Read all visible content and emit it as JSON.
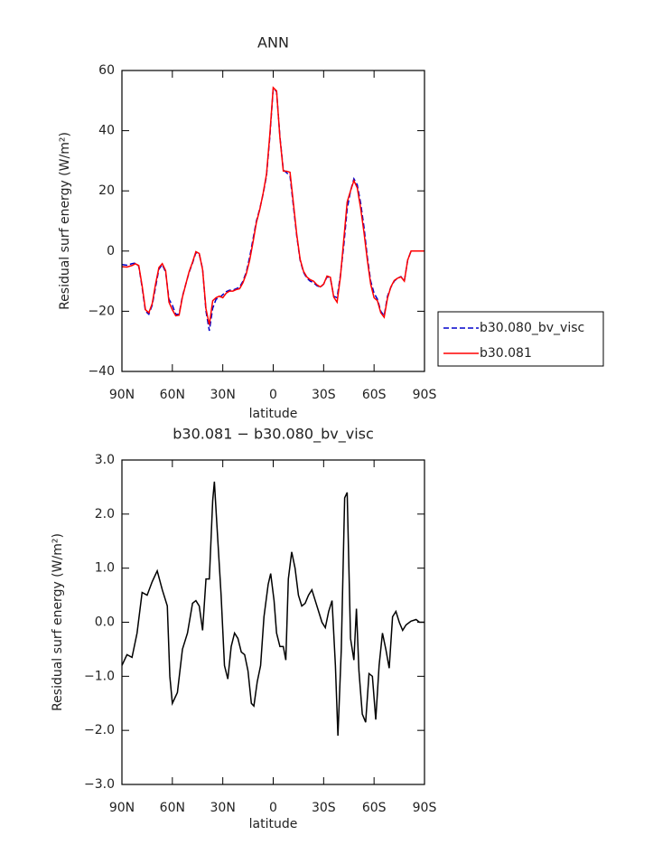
{
  "chart_data": [
    {
      "type": "line",
      "title": "ANN",
      "xlabel": "latitude",
      "ylabel": "Residual surf energy (W/m²)",
      "x": [
        90,
        87,
        84,
        82,
        80,
        78,
        76,
        74,
        72,
        70,
        68,
        66,
        64,
        62,
        60,
        58,
        56,
        54,
        52,
        50,
        48,
        46,
        44,
        42,
        40,
        38,
        36,
        34,
        32,
        30,
        28,
        26,
        24,
        22,
        20,
        18,
        16,
        14,
        12,
        10,
        8,
        6,
        4,
        2,
        0,
        -2,
        -4,
        -6,
        -8,
        -10,
        -12,
        -14,
        -16,
        -18,
        -20,
        -22,
        -24,
        -26,
        -28,
        -30,
        -32,
        -34,
        -36,
        -38,
        -40,
        -42,
        -44,
        -46,
        -48,
        -50,
        -52,
        -54,
        -56,
        -58,
        -60,
        -62,
        -64,
        -66,
        -68,
        -70,
        -72,
        -74,
        -76,
        -78,
        -80,
        -82,
        -86,
        -90
      ],
      "series": [
        {
          "name": "b30.080_bv_visc",
          "color": "#0000cc",
          "line_style": "dashed",
          "values": [
            -4.5,
            -4.7,
            -4.2,
            -4,
            -5,
            -12,
            -20,
            -21,
            -18,
            -12,
            -6,
            -4.5,
            -7,
            -16,
            -18,
            -21,
            -21,
            -15,
            -11,
            -7,
            -4,
            -0.5,
            -1,
            -6,
            -20,
            -26.5,
            -19,
            -16,
            -15.5,
            -14.5,
            -13.5,
            -13,
            -13,
            -12.5,
            -12,
            -10,
            -7,
            -2,
            4,
            10,
            14,
            19,
            25,
            38,
            54,
            53,
            38,
            27,
            26,
            25,
            15,
            5,
            -3,
            -7,
            -9,
            -10,
            -10.5,
            -11.5,
            -12,
            -11,
            -8.5,
            -9,
            -15,
            -15.5,
            -8,
            2,
            14,
            20,
            24,
            22,
            16,
            8,
            -2,
            -10,
            -14,
            -16,
            -20,
            -21.5,
            -15,
            -12,
            -10,
            -9,
            -8.5,
            -10,
            -3,
            0,
            0,
            0
          ]
        },
        {
          "name": "b30.081",
          "color": "#ff0000",
          "line_style": "solid",
          "values": [
            -5.2,
            -5.3,
            -4.8,
            -4.2,
            -4.8,
            -11.5,
            -19.5,
            -20.5,
            -17.5,
            -11,
            -5.5,
            -4.2,
            -6.5,
            -17,
            -19.5,
            -21.5,
            -21.3,
            -15.3,
            -11,
            -6.8,
            -3.7,
            -0.2,
            -0.8,
            -6.2,
            -19.2,
            -24.5,
            -16.5,
            -15.5,
            -15,
            -15.5,
            -14,
            -13.3,
            -13.3,
            -12.8,
            -12.5,
            -10.5,
            -7.5,
            -3,
            3,
            9.5,
            13.8,
            19.2,
            25.5,
            38.8,
            54.3,
            53.2,
            37.6,
            26.6,
            26.5,
            26.2,
            16,
            5.5,
            -2.7,
            -6.7,
            -8.6,
            -9.5,
            -10,
            -11.2,
            -11.9,
            -11,
            -8.3,
            -8.7,
            -15.3,
            -17,
            -8.5,
            4,
            16.3,
            20,
            23.4,
            21,
            14.3,
            6.2,
            -3,
            -11,
            -15.5,
            -16.5,
            -20.5,
            -22,
            -15.6,
            -11.9,
            -9.8,
            -9,
            -8.6,
            -10,
            -3,
            0,
            0,
            0
          ]
        }
      ],
      "xlim": [
        90,
        -90
      ],
      "xticks": [
        {
          "value": 90,
          "label": "90N"
        },
        {
          "value": 60,
          "label": "60N"
        },
        {
          "value": 30,
          "label": "30N"
        },
        0,
        {
          "value": -30,
          "label": "30S"
        },
        {
          "value": -60,
          "label": "60S"
        },
        {
          "value": -90,
          "label": "90S"
        }
      ],
      "ylim": [
        -40,
        60
      ],
      "yticks": [
        60,
        40,
        20,
        0,
        {
          "value": -20,
          "label": "−20"
        },
        {
          "value": -40,
          "label": "−40"
        }
      ],
      "legend": "right"
    },
    {
      "type": "line",
      "title": "b30.081 − b30.080_bv_visc",
      "xlabel": "latitude",
      "ylabel": "Residual surf energy (W/m²)",
      "x": [
        90,
        87,
        84,
        81,
        78,
        75,
        72,
        69,
        66,
        63,
        61.5,
        60,
        57,
        54,
        51,
        48,
        46,
        44,
        42,
        40,
        38,
        36,
        35,
        33.5,
        31,
        29,
        27,
        25,
        23,
        21,
        19,
        17,
        15,
        13,
        11.5,
        9.5,
        7.5,
        5.5,
        3,
        1.5,
        -0.5,
        -2,
        -4,
        -6,
        -7.5,
        -9,
        -11,
        -13,
        -15,
        -17,
        -19,
        -21,
        -23,
        -25,
        -27,
        -29,
        -31,
        -33,
        -35,
        -37,
        -38.5,
        -40.5,
        -42.5,
        -44,
        -46,
        -48,
        -49.5,
        -51,
        -53,
        -55,
        -57,
        -59,
        -61,
        -63,
        -65,
        -67,
        -69,
        -71,
        -73,
        -75,
        -77,
        -79,
        -82,
        -85,
        -87,
        -90
      ],
      "values": [
        -0.8,
        -0.6,
        -0.65,
        -0.2,
        0.55,
        0.5,
        0.75,
        0.95,
        0.6,
        0.3,
        -1.0,
        -1.5,
        -1.3,
        -0.5,
        -0.2,
        0.35,
        0.4,
        0.3,
        -0.15,
        0.8,
        0.8,
        2.25,
        2.6,
        1.8,
        0.5,
        -0.8,
        -1.05,
        -0.45,
        -0.2,
        -0.3,
        -0.55,
        -0.6,
        -0.9,
        -1.5,
        -1.55,
        -1.1,
        -0.8,
        0.1,
        0.7,
        0.9,
        0.4,
        -0.2,
        -0.45,
        -0.45,
        -0.7,
        0.8,
        1.3,
        1.0,
        0.5,
        0.3,
        0.35,
        0.5,
        0.6,
        0.4,
        0.2,
        0.0,
        -0.1,
        0.2,
        0.4,
        -0.8,
        -2.1,
        -0.5,
        2.3,
        2.4,
        -0.3,
        -0.7,
        0.25,
        -0.9,
        -1.7,
        -1.85,
        -0.95,
        -1.0,
        -1.8,
        -0.8,
        -0.2,
        -0.5,
        -0.85,
        0.1,
        0.2,
        0.0,
        -0.15,
        -0.05,
        0.02,
        0.05,
        0.0,
        0.0
      ],
      "color": "#000000",
      "xlim": [
        90,
        -90
      ],
      "xticks": [
        {
          "value": 90,
          "label": "90N"
        },
        {
          "value": 60,
          "label": "60N"
        },
        {
          "value": 30,
          "label": "30N"
        },
        0,
        {
          "value": -30,
          "label": "30S"
        },
        {
          "value": -60,
          "label": "60S"
        },
        {
          "value": -90,
          "label": "90S"
        }
      ],
      "ylim": [
        -3,
        3
      ],
      "yticks": [
        {
          "value": 3,
          "label": "3.0"
        },
        {
          "value": 2,
          "label": "2.0"
        },
        {
          "value": 1,
          "label": "1.0"
        },
        {
          "value": 0,
          "label": "0.0"
        },
        {
          "value": -1,
          "label": "−1.0"
        },
        {
          "value": -2,
          "label": "−2.0"
        },
        {
          "value": -3,
          "label": "−3.0"
        }
      ]
    }
  ]
}
